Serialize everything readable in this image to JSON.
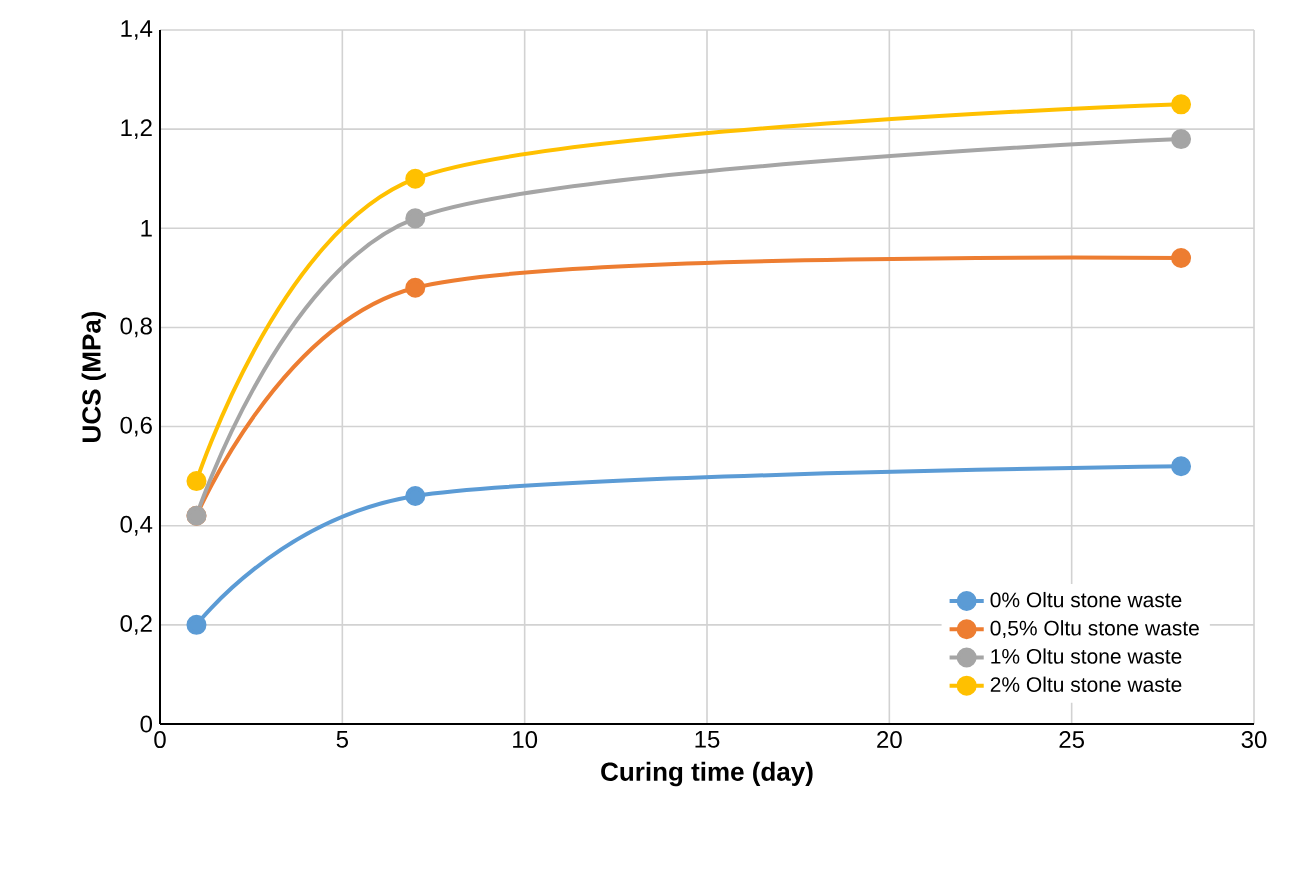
{
  "chart_data": {
    "type": "line",
    "xlabel": "Curing time (day)",
    "ylabel": "UCS (MPa)",
    "x": [
      1,
      7,
      28
    ],
    "series": [
      {
        "name": "0% Oltu stone waste",
        "color": "#5b9bd5",
        "values": [
          0.2,
          0.46,
          0.52
        ]
      },
      {
        "name": "0,5% Oltu stone waste",
        "color": "#ed7d31",
        "values": [
          0.42,
          0.88,
          0.94
        ]
      },
      {
        "name": "1% Oltu stone waste",
        "color": "#a5a5a5",
        "values": [
          0.42,
          1.02,
          1.18
        ]
      },
      {
        "name": "2% Oltu stone waste",
        "color": "#ffc000",
        "values": [
          0.49,
          1.1,
          1.25
        ]
      }
    ],
    "xlim": [
      0,
      30
    ],
    "xticks": [
      0,
      5,
      10,
      15,
      20,
      25,
      30
    ],
    "ylim": [
      0,
      1.4
    ],
    "yticks": [
      0,
      {
        "value": 0.2,
        "label": "0,2"
      },
      {
        "value": 0.4,
        "label": "0,4"
      },
      {
        "value": 0.6,
        "label": "0,6"
      },
      {
        "value": 0.8,
        "label": "0,8"
      },
      1,
      {
        "value": 1.2,
        "label": "1,2"
      },
      {
        "value": 1.4,
        "label": "1,4"
      }
    ],
    "grid": true,
    "legend": "bottom right",
    "marker": "circle",
    "line_style": "solid"
  }
}
